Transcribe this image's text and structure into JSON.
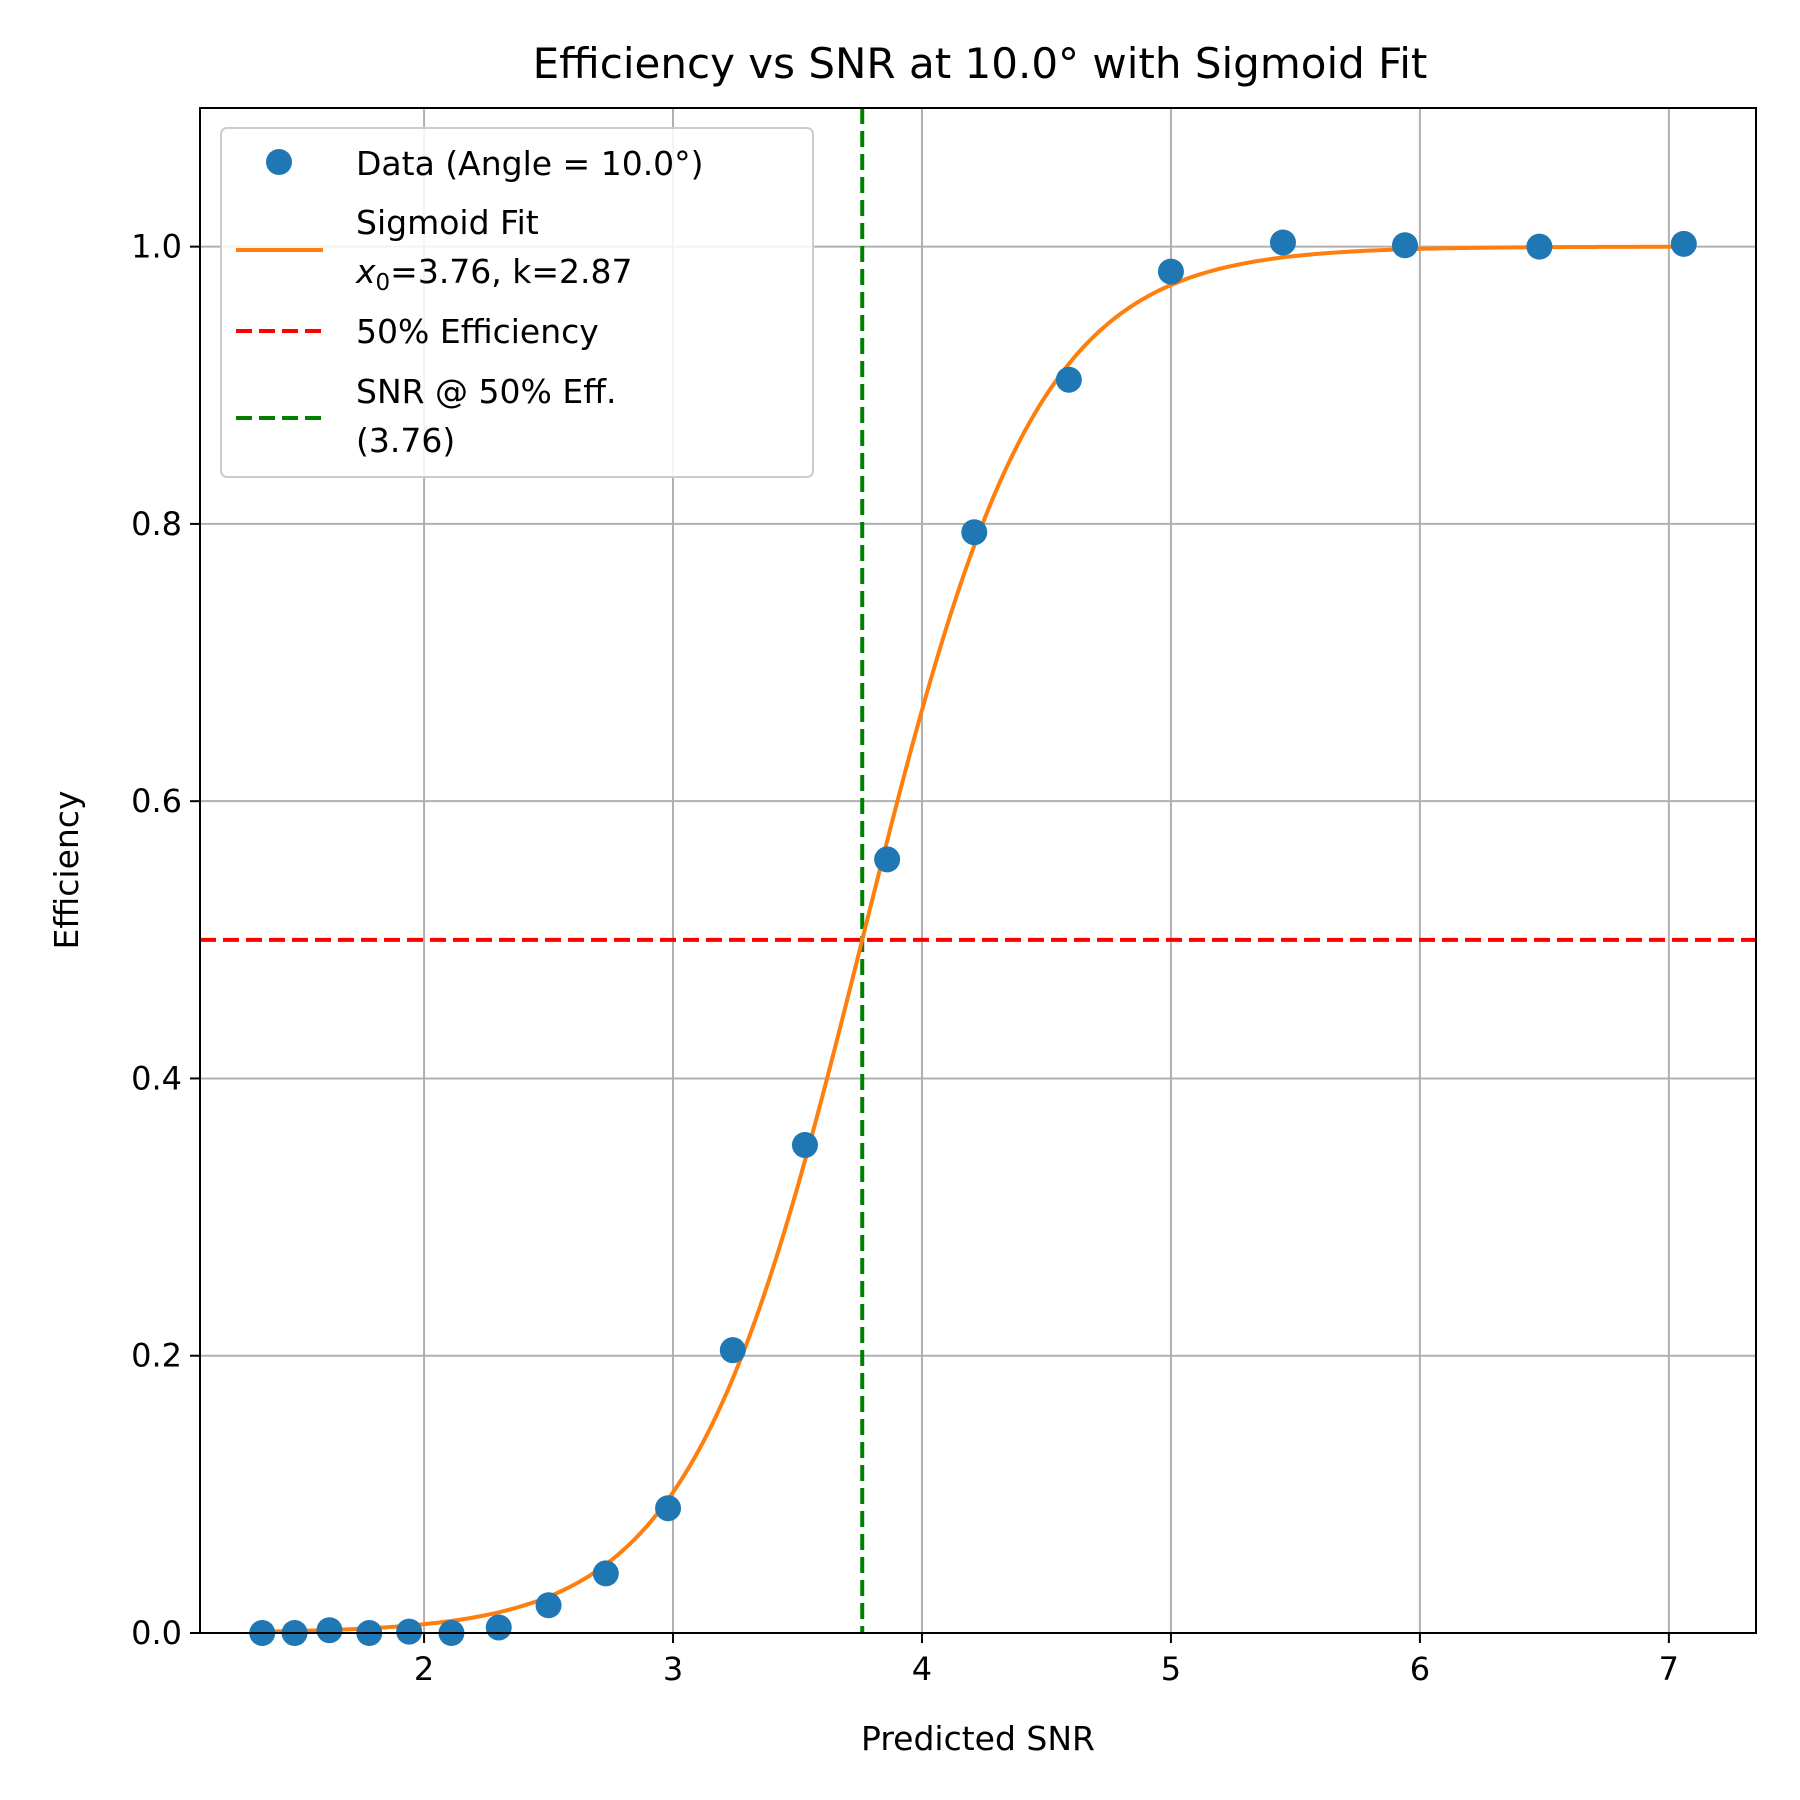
{
  "chart_data": {
    "type": "scatter",
    "title": "Efficiency vs SNR at 10.0° with Sigmoid Fit",
    "xlabel": "Predicted SNR",
    "ylabel": "Efficiency",
    "xlim": [
      1.1,
      7.35
    ],
    "ylim": [
      0.0,
      1.1
    ],
    "grid": true,
    "legend_position": "top-left",
    "x_ticks": [
      2,
      3,
      4,
      5,
      6,
      7
    ],
    "x_tick_labels": [
      "2",
      "3",
      "4",
      "5",
      "6",
      "7"
    ],
    "y_ticks": [
      0.0,
      0.2,
      0.4,
      0.6,
      0.8,
      1.0
    ],
    "y_tick_labels": [
      "0.0",
      "0.2",
      "0.4",
      "0.6",
      "0.8",
      "1.0"
    ],
    "series": [
      {
        "name": "Data (Angle = 10.0°)",
        "kind": "points",
        "color": "#1f77b4",
        "x": [
          1.35,
          1.48,
          1.62,
          1.78,
          1.94,
          2.11,
          2.3,
          2.5,
          2.73,
          2.98,
          3.24,
          3.53,
          3.86,
          4.21,
          4.59,
          5.0,
          5.45,
          5.94,
          6.48,
          7.06
        ],
        "y": [
          0.0,
          0.0,
          0.002,
          0.0,
          0.001,
          0.0,
          0.004,
          0.02,
          0.043,
          0.09,
          0.204,
          0.352,
          0.558,
          0.794,
          0.904,
          0.982,
          1.003,
          1.001,
          1.0,
          1.002
        ]
      },
      {
        "name": "Sigmoid Fit",
        "label_line2_prefix": "x",
        "label_line2_subscript": "0",
        "label_line2_rest": "=3.76, k=2.87",
        "kind": "sigmoid",
        "color": "#ff7f0e",
        "x0": 3.76,
        "k": 2.87,
        "x_range": [
          1.35,
          7.06
        ]
      },
      {
        "name": "50% Efficiency",
        "kind": "hline",
        "color": "#ff0000",
        "y": 0.5
      },
      {
        "name": "SNR @ 50% Eff.",
        "name_line2": "(3.76)",
        "kind": "vline",
        "color": "#008000",
        "x": 3.76
      }
    ]
  }
}
